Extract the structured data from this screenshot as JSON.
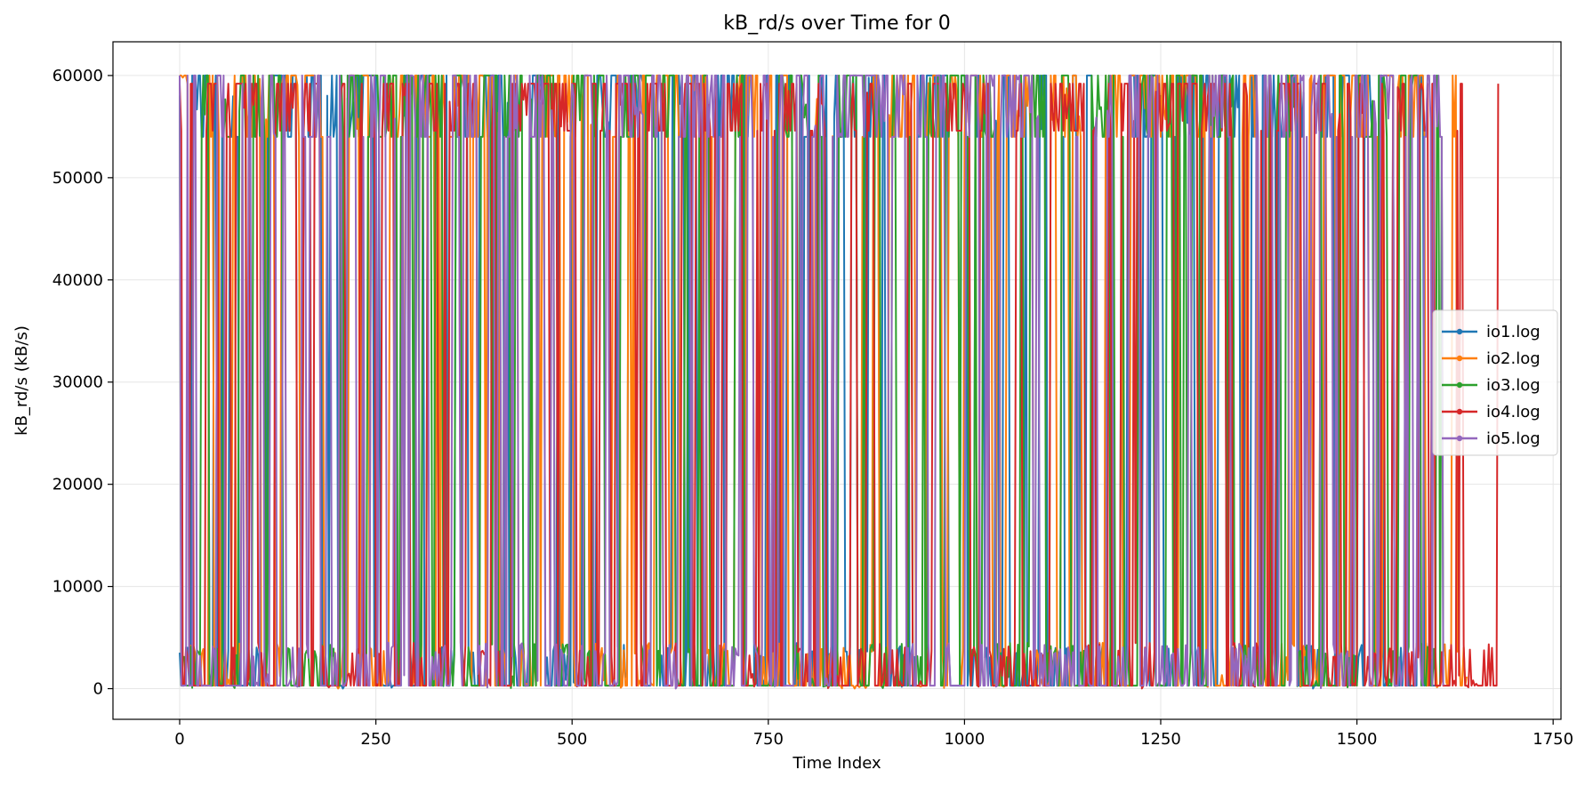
{
  "chart_data": {
    "type": "line",
    "title": "kB_rd/s over Time for 0",
    "xlabel": "Time Index",
    "ylabel": "kB_rd/s (kB/s)",
    "xlim": [
      -85,
      1760
    ],
    "ylim": [
      -3000,
      63300
    ],
    "xticks": [
      0,
      250,
      500,
      750,
      1000,
      1250,
      1500,
      1750
    ],
    "yticks": [
      0,
      10000,
      20000,
      30000,
      40000,
      50000,
      60000
    ],
    "grid": true,
    "legend_position": "center-right",
    "series": [
      {
        "name": "io1.log",
        "color": "#1f77b4",
        "length": 1600,
        "high": 60000,
        "low": 300,
        "mid": 54000
      },
      {
        "name": "io2.log",
        "color": "#ff7f0e",
        "length": 1640,
        "high": 60000,
        "low": 300,
        "mid": 54000
      },
      {
        "name": "io3.log",
        "color": "#2ca02c",
        "length": 1610,
        "high": 60000,
        "low": 300,
        "mid": 54000
      },
      {
        "name": "io4.log",
        "color": "#d62728",
        "length": 1680,
        "high": 59200,
        "low": 300,
        "mid": 54600
      },
      {
        "name": "io5.log",
        "color": "#9467bd",
        "length": 1610,
        "high": 60000,
        "low": 300,
        "mid": 54000
      }
    ]
  }
}
